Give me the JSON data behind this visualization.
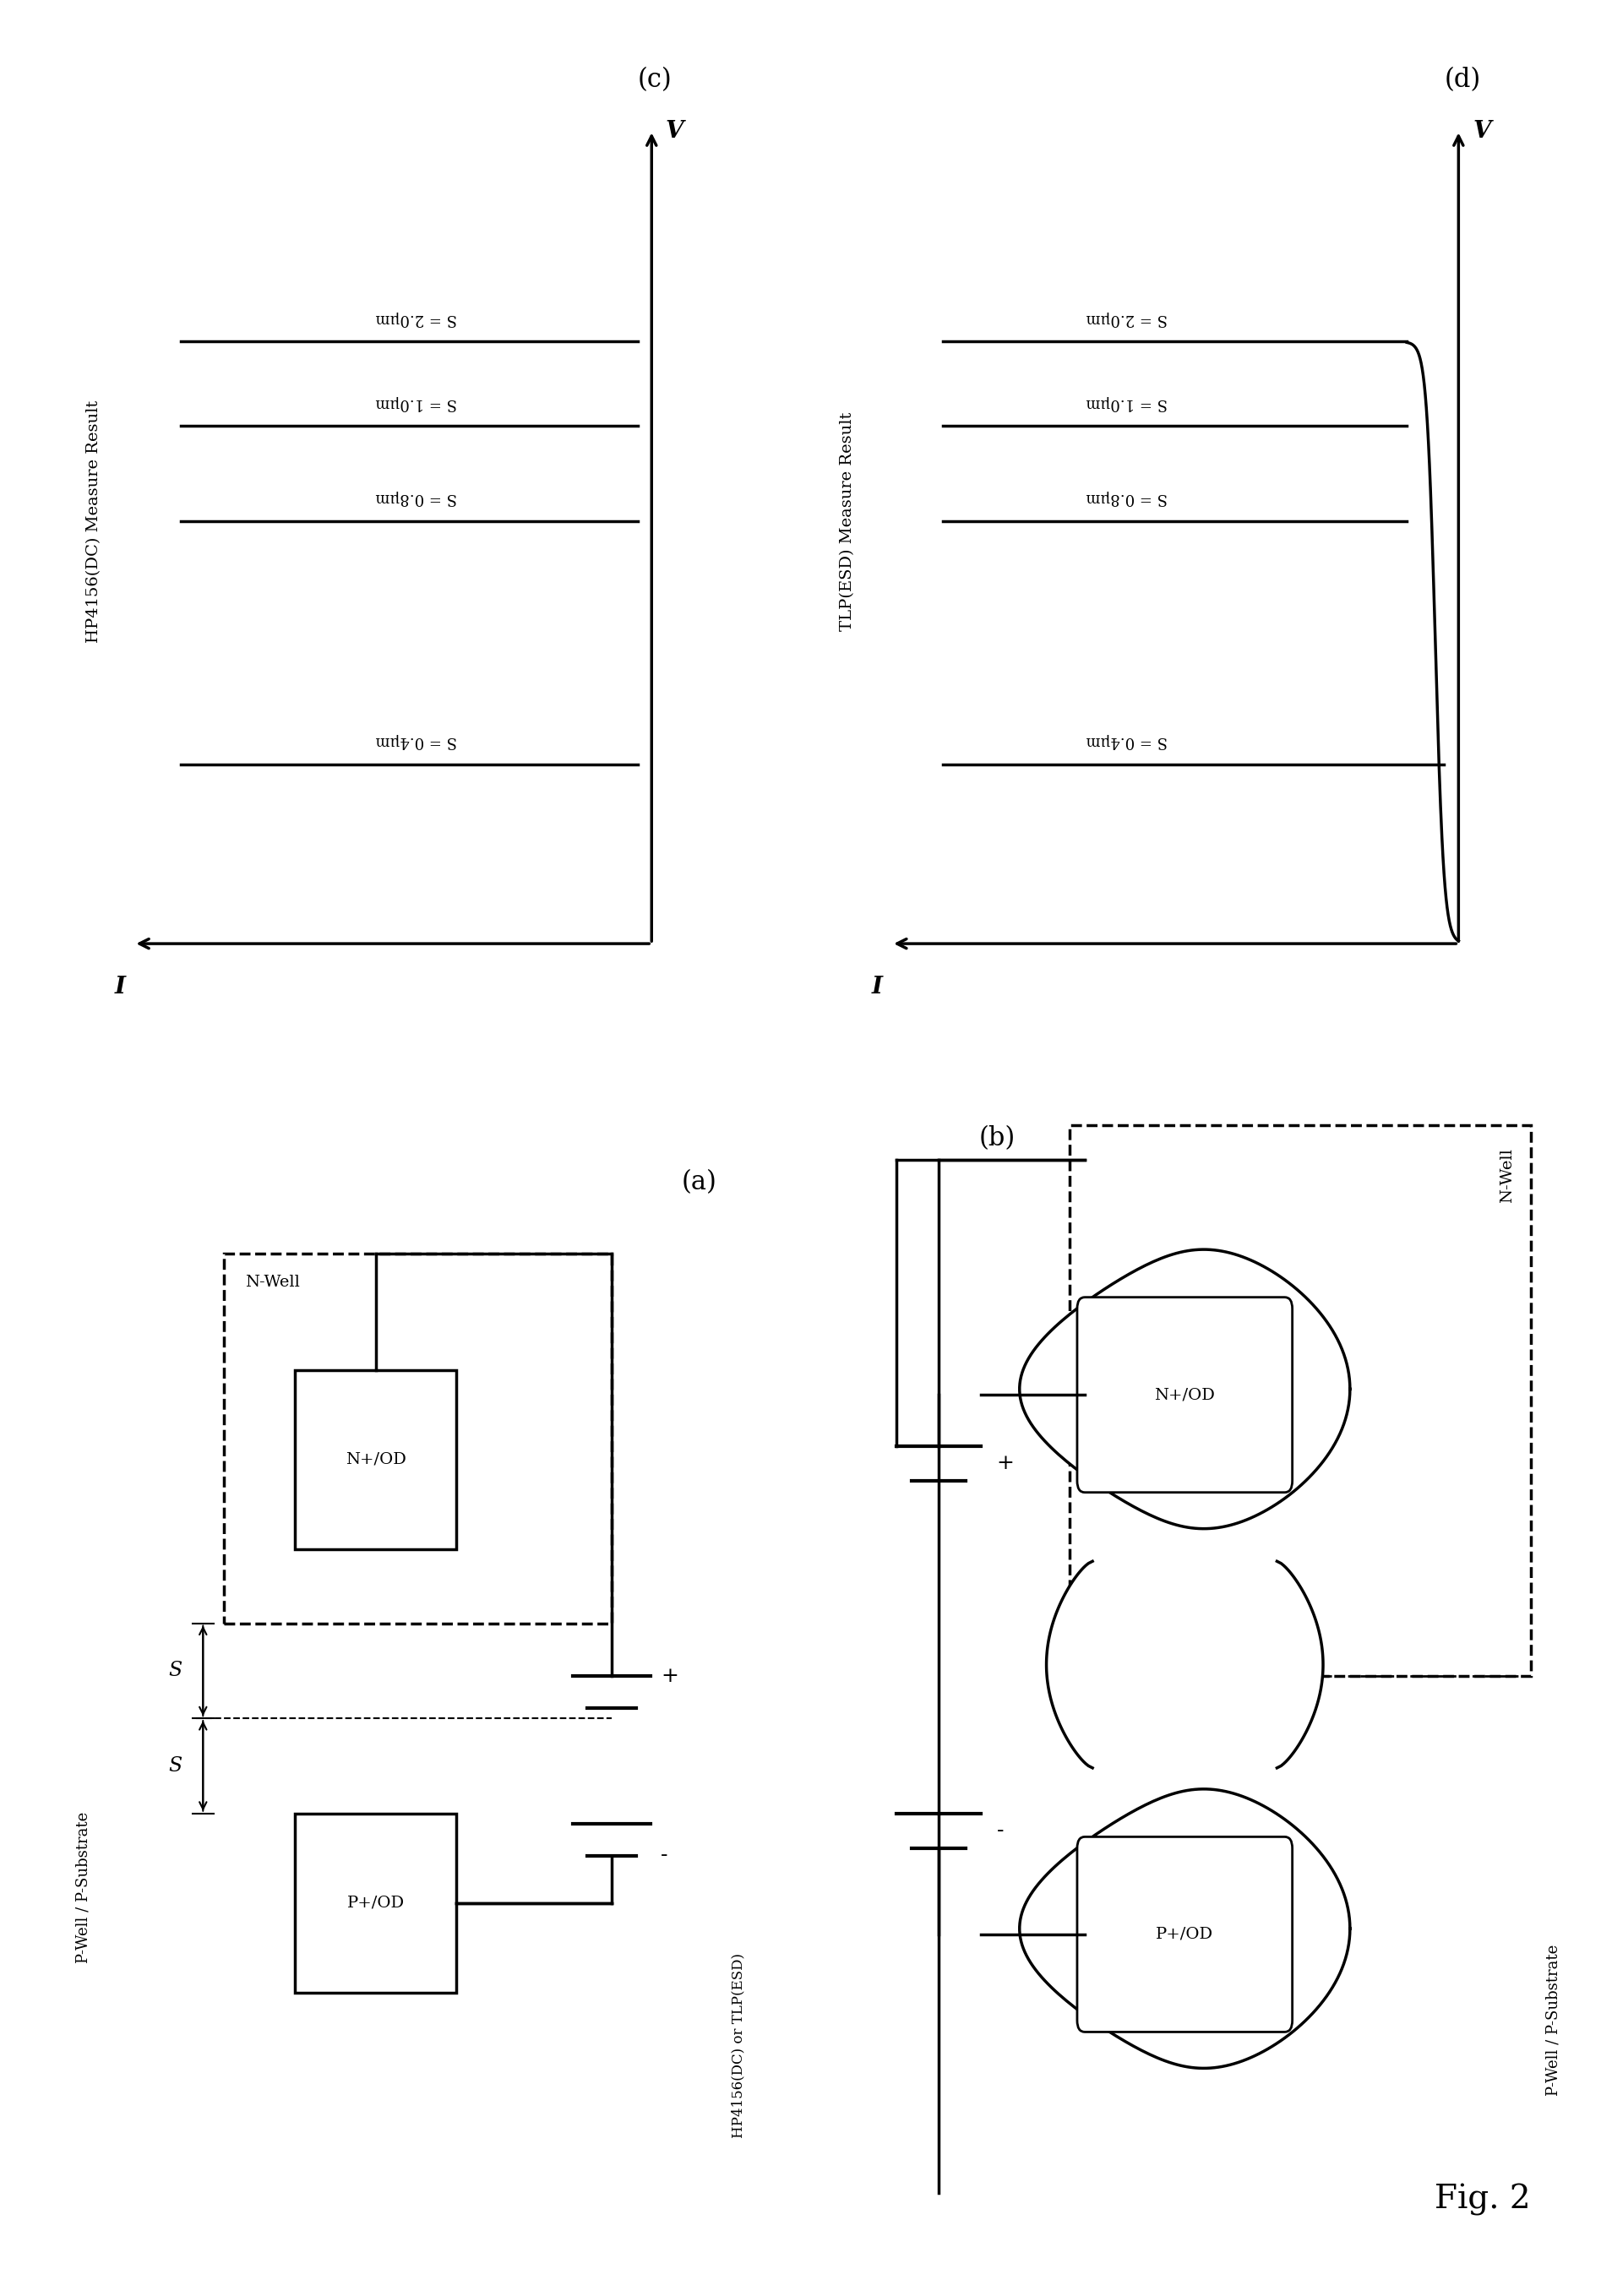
{
  "fig_width": 18.95,
  "fig_height": 27.18,
  "background": "#ffffff",
  "panel_labels": [
    "(a)",
    "(b)",
    "(c)",
    "(d)"
  ],
  "fig2_label": "Fig. 2",
  "dc_curves_label": "HP4156(DC) Measure Result",
  "tlp_curves_label": "TLP(ESD) Measure Result",
  "curve_labels_rotated": [
    "S = 0.4μm",
    "S = 0.8μm",
    "S = 1.0μm",
    "S = 2.0μm"
  ],
  "v_axis": "V",
  "i_axis": "I",
  "batt_label": "HP4156(DC) or TLP(ESD)"
}
